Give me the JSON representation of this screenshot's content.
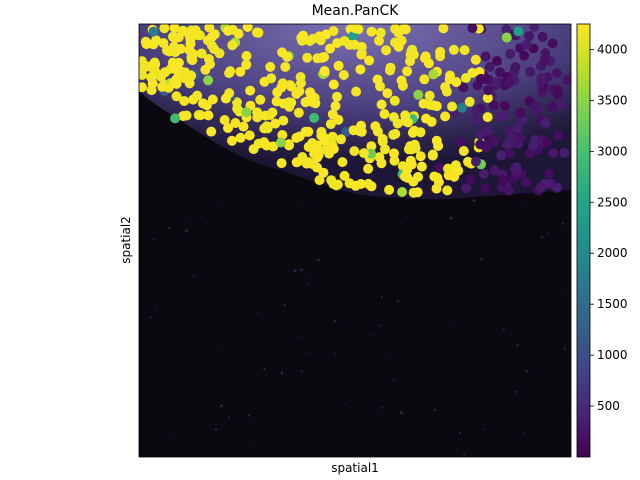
{
  "chart_data": {
    "type": "scatter",
    "title": "Mean.PanCK",
    "xlabel": "spatial1",
    "ylabel": "spatial2",
    "x_ticks_shown": false,
    "y_ticks_shown": false,
    "background": "fluorescence tissue image (dark, purple/white tissue in upper region)",
    "point_color_encoding": "Mean.PanCK (viridis)",
    "colorbar": {
      "colormap": "viridis",
      "range": [
        0,
        4250
      ],
      "ticks": [
        500,
        1000,
        1500,
        2000,
        2500,
        3000,
        3500,
        4000
      ],
      "tick_labels": [
        "500",
        "1000",
        "1500",
        "2000",
        "2500",
        "3000",
        "3500",
        "4000"
      ]
    },
    "cell_count_estimate": 520,
    "value_distribution": {
      "high_panck_left_region": "mostly 4000+ (yellow)",
      "low_panck_right_region": "mostly ~100-300 (purple)",
      "occasional_mid_values": [
        1200,
        1800,
        2400,
        2900,
        3300,
        3500,
        3700
      ]
    }
  },
  "colors": {
    "image_background": "#0b0810",
    "tissue": "#6a5aa8",
    "viridis_low": "#440154",
    "viridis_high": "#fde725"
  }
}
